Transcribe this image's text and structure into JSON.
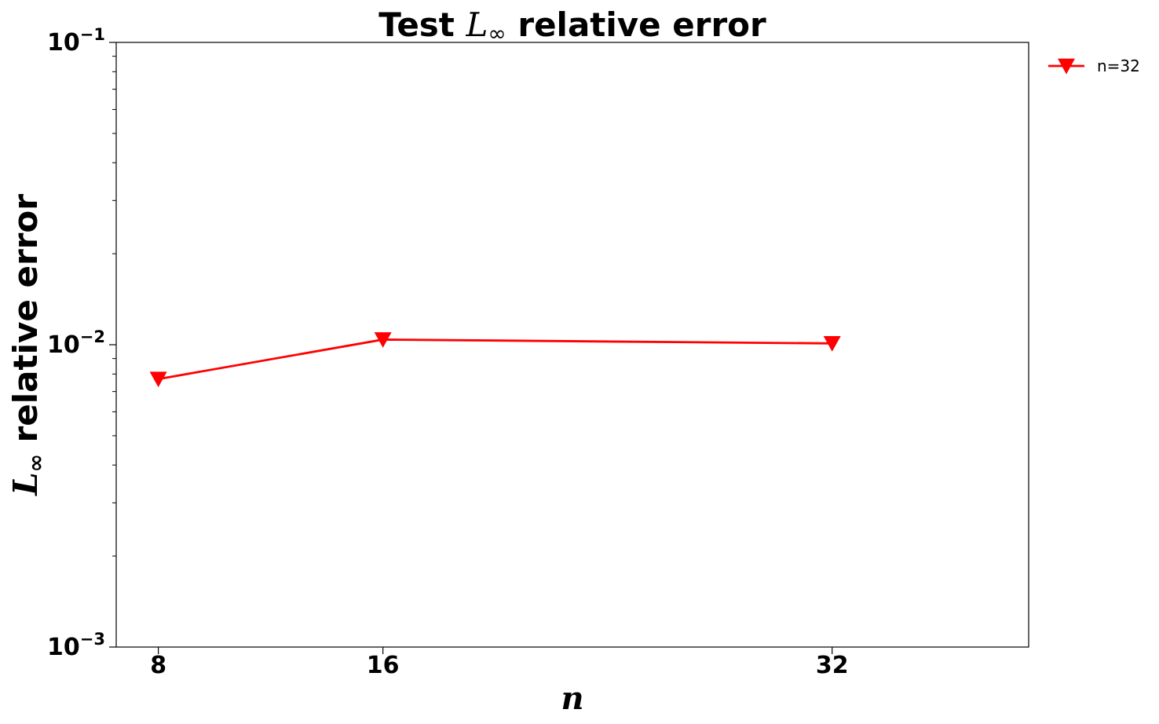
{
  "chart_data": {
    "type": "line",
    "title": {
      "prefix": "Test ",
      "math_base": "L",
      "math_sub": "∞",
      "suffix": " relative error"
    },
    "xlabel": "n",
    "ylabel": {
      "math_base": "L",
      "math_sub": "∞",
      "suffix": " relative error"
    },
    "x_scale": "linear",
    "y_scale": "log",
    "xlim": [
      6.5,
      39
    ],
    "ylim": [
      0.001,
      0.1
    ],
    "x_ticks": [
      8,
      16,
      32
    ],
    "x_tick_labels": [
      "8",
      "16",
      "32"
    ],
    "y_ticks": [
      0.001,
      0.01,
      0.1
    ],
    "y_tick_labels": [
      {
        "base": "10",
        "exp": "−3"
      },
      {
        "base": "10",
        "exp": "−2"
      },
      {
        "base": "10",
        "exp": "−1"
      }
    ],
    "grid": false,
    "legend_position": "outside-top-right",
    "series": [
      {
        "name": "n=32",
        "color": "#ff0000",
        "marker": "triangle-down",
        "x": [
          8,
          16,
          32
        ],
        "y": [
          0.0077,
          0.0104,
          0.0101
        ]
      }
    ]
  }
}
